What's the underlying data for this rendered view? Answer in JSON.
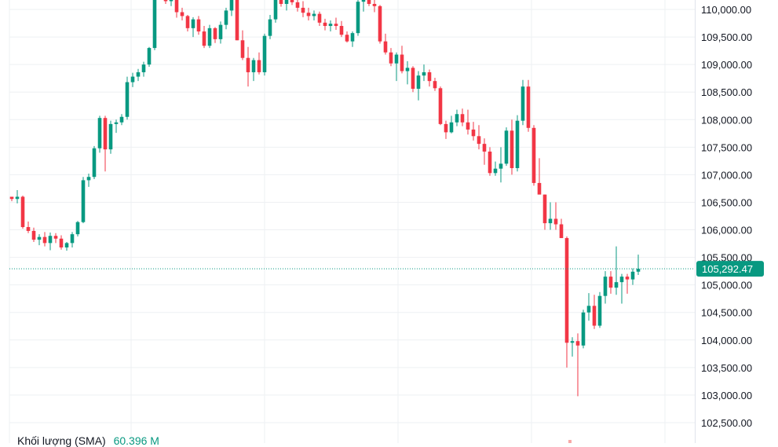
{
  "chart_data": {
    "type": "candlestick",
    "price_axis": {
      "ticks": [
        "110,000.00",
        "109,500.00",
        "109,000.00",
        "108,500.00",
        "108,000.00",
        "107,500.00",
        "107,000.00",
        "106,500.00",
        "106,000.00",
        "105,500.00",
        "105,000.00",
        "104,500.00",
        "104,000.00",
        "103,500.00",
        "103,000.00",
        "102,500.00"
      ],
      "tick_values": [
        110000,
        109500,
        109000,
        108500,
        108000,
        107500,
        107000,
        106500,
        106000,
        105500,
        105000,
        104500,
        104000,
        103500,
        103000,
        102500
      ],
      "ylim": [
        102430,
        110250
      ]
    },
    "current_price": {
      "value": 105292.47,
      "label": "105,292.47"
    },
    "colors": {
      "up": "#089981",
      "down": "#f23645",
      "grid": "#eef0f3",
      "price_line": "#089981"
    },
    "grid": true,
    "volume_legend": {
      "label": "Khối lượng (SMA)",
      "value": "60.396 M"
    },
    "candles": [
      [
        106600,
        106600,
        106520,
        106560
      ],
      [
        106560,
        106720,
        106480,
        106600
      ],
      [
        106600,
        106620,
        106020,
        106050
      ],
      [
        106050,
        106150,
        105940,
        105980
      ],
      [
        105980,
        106040,
        105780,
        105820
      ],
      [
        105820,
        105920,
        105720,
        105870
      ],
      [
        105870,
        105960,
        105700,
        105760
      ],
      [
        105760,
        105950,
        105630,
        105890
      ],
      [
        105890,
        105940,
        105760,
        105840
      ],
      [
        105840,
        105900,
        105640,
        105680
      ],
      [
        105680,
        105780,
        105620,
        105760
      ],
      [
        105760,
        105960,
        105680,
        105920
      ],
      [
        105920,
        106160,
        105880,
        106140
      ],
      [
        106140,
        106960,
        106120,
        106900
      ],
      [
        106900,
        107020,
        106780,
        106960
      ],
      [
        106960,
        107520,
        106920,
        107480
      ],
      [
        107480,
        108070,
        107400,
        108030
      ],
      [
        108030,
        108070,
        107060,
        107460
      ],
      [
        107460,
        107980,
        107380,
        107920
      ],
      [
        107920,
        108000,
        107760,
        107950
      ],
      [
        107950,
        108100,
        107900,
        108050
      ],
      [
        108050,
        108780,
        108000,
        108680
      ],
      [
        108680,
        108850,
        108590,
        108780
      ],
      [
        108780,
        108920,
        108700,
        108860
      ],
      [
        108860,
        109050,
        108780,
        109000
      ],
      [
        109000,
        109320,
        108960,
        109300
      ],
      [
        109300,
        110300,
        109260,
        110260
      ],
      [
        110250,
        110350,
        110180,
        110200
      ],
      [
        110200,
        110300,
        110100,
        110150
      ],
      [
        110150,
        110250,
        110060,
        110210
      ],
      [
        110200,
        110260,
        109850,
        109950
      ],
      [
        109950,
        110030,
        109800,
        109880
      ],
      [
        109880,
        109900,
        109600,
        109660
      ],
      [
        109660,
        109860,
        109500,
        109820
      ],
      [
        109820,
        109880,
        109540,
        109600
      ],
      [
        109600,
        109700,
        109300,
        109340
      ],
      [
        109340,
        109720,
        109300,
        109660
      ],
      [
        109660,
        109680,
        109390,
        109460
      ],
      [
        109460,
        109780,
        109380,
        109720
      ],
      [
        109720,
        110030,
        109640,
        109980
      ],
      [
        109980,
        110300,
        109880,
        110200
      ],
      [
        110200,
        110280,
        109440,
        109440
      ],
      [
        109440,
        109620,
        109080,
        109120
      ],
      [
        109120,
        109320,
        108600,
        108860
      ],
      [
        108860,
        109120,
        108700,
        109080
      ],
      [
        109080,
        109220,
        108820,
        108860
      ],
      [
        108860,
        109560,
        108800,
        109520
      ],
      [
        109520,
        109900,
        109460,
        109820
      ],
      [
        109820,
        110300,
        109760,
        110240
      ],
      [
        110240,
        110300,
        110050,
        110100
      ],
      [
        110100,
        110250,
        109980,
        110180
      ],
      [
        110180,
        110250,
        110080,
        110130
      ],
      [
        110130,
        110250,
        109960,
        110030
      ],
      [
        110030,
        110150,
        109860,
        109940
      ],
      [
        109940,
        110030,
        109800,
        109880
      ],
      [
        109880,
        109980,
        109800,
        109920
      ],
      [
        109920,
        109960,
        109700,
        109760
      ],
      [
        109760,
        109830,
        109620,
        109700
      ],
      [
        109700,
        109800,
        109600,
        109740
      ],
      [
        109740,
        109850,
        109630,
        109700
      ],
      [
        109700,
        109790,
        109500,
        109540
      ],
      [
        109540,
        109600,
        109400,
        109420
      ],
      [
        109420,
        109600,
        109320,
        109570
      ],
      [
        109570,
        110200,
        109520,
        110140
      ],
      [
        110140,
        110350,
        109960,
        110240
      ],
      [
        110240,
        110260,
        110060,
        110100
      ],
      [
        110100,
        110180,
        109950,
        110060
      ],
      [
        110060,
        110080,
        109380,
        109420
      ],
      [
        109420,
        109560,
        109180,
        109220
      ],
      [
        109220,
        109300,
        108970,
        109020
      ],
      [
        109020,
        109220,
        108700,
        109180
      ],
      [
        109180,
        109340,
        108840,
        108880
      ],
      [
        108880,
        109060,
        108640,
        108940
      ],
      [
        108940,
        108970,
        108500,
        108560
      ],
      [
        108560,
        108880,
        108350,
        108800
      ],
      [
        108800,
        109000,
        108700,
        108860
      ],
      [
        108860,
        108910,
        108600,
        108700
      ],
      [
        108700,
        108760,
        108520,
        108570
      ],
      [
        108570,
        108600,
        107900,
        107920
      ],
      [
        107920,
        107980,
        107650,
        107770
      ],
      [
        107770,
        108070,
        107750,
        107950
      ],
      [
        107950,
        108180,
        107880,
        108100
      ],
      [
        108100,
        108200,
        107880,
        107950
      ],
      [
        107950,
        108180,
        107730,
        107820
      ],
      [
        107820,
        107960,
        107620,
        107700
      ],
      [
        107700,
        107900,
        107460,
        107560
      ],
      [
        107560,
        107660,
        107180,
        107420
      ],
      [
        107420,
        107500,
        106980,
        107030
      ],
      [
        107030,
        107240,
        106980,
        107110
      ],
      [
        107110,
        107500,
        106860,
        107200
      ],
      [
        107200,
        107860,
        107160,
        107800
      ],
      [
        107800,
        108000,
        107000,
        107120
      ],
      [
        107120,
        108080,
        107060,
        107980
      ],
      [
        107980,
        108720,
        107900,
        108600
      ],
      [
        108600,
        108720,
        107780,
        107850
      ],
      [
        107850,
        107900,
        106800,
        106850
      ],
      [
        106850,
        107300,
        106650,
        106640
      ],
      [
        106640,
        106640,
        106000,
        106120
      ],
      [
        106120,
        106500,
        106000,
        106200
      ],
      [
        106200,
        106500,
        106000,
        106100
      ],
      [
        106100,
        106200,
        105850,
        105850
      ],
      [
        105850,
        105880,
        103500,
        103950
      ],
      [
        103950,
        104050,
        103700,
        103980
      ],
      [
        103980,
        104120,
        102980,
        103900
      ],
      [
        103900,
        104550,
        103850,
        104500
      ],
      [
        104500,
        104850,
        104350,
        104620
      ],
      [
        104620,
        104820,
        104200,
        104260
      ],
      [
        104260,
        104870,
        104220,
        104800
      ],
      [
        104800,
        105250,
        104660,
        105150
      ],
      [
        105150,
        105250,
        104840,
        104950
      ],
      [
        104950,
        105700,
        104820,
        105050
      ],
      [
        105050,
        105200,
        104660,
        105150
      ],
      [
        105150,
        105200,
        104840,
        105100
      ],
      [
        105100,
        105300,
        105000,
        105240
      ],
      [
        105240,
        105550,
        105180,
        105292
      ]
    ]
  }
}
